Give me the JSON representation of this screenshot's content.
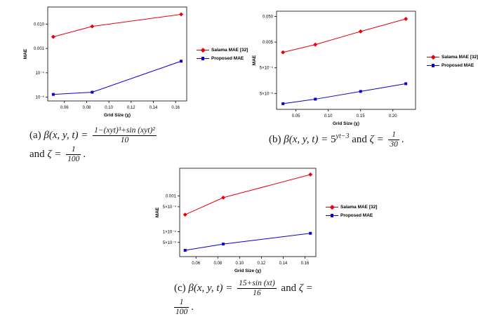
{
  "legend": {
    "salama": "Salama MAE [32]",
    "proposed": "Proposed MAE"
  },
  "colors": {
    "salama": "#e8000b",
    "proposed": "#0b00cd"
  },
  "chart_data": [
    {
      "id": "a",
      "type": "line",
      "title": "",
      "xlabel": "Grid Size (χ)",
      "ylabel": "MAE",
      "x": [
        0.05,
        0.085,
        0.165
      ],
      "series": [
        {
          "name": "Salama MAE [32]",
          "color": "#e8000b",
          "marker": "diamond",
          "values": [
            0.003,
            0.008,
            0.025
          ]
        },
        {
          "name": "Proposed MAE",
          "color": "#0b00cd",
          "marker": "square",
          "values": [
            1.3e-05,
            1.6e-05,
            0.0003
          ]
        }
      ],
      "xlim": [
        0.045,
        0.17
      ],
      "ylim": [
        7e-06,
        0.05
      ],
      "yscale": "log",
      "grid": false,
      "legend_position": "right",
      "xticks": [
        {
          "v": 0.06,
          "label": "0.06"
        },
        {
          "v": 0.08,
          "label": "0.08"
        },
        {
          "v": 0.1,
          "label": "0.10"
        },
        {
          "v": 0.12,
          "label": "0.12"
        },
        {
          "v": 0.14,
          "label": "0.14"
        },
        {
          "v": 0.16,
          "label": "0.16"
        }
      ],
      "yticks": [
        {
          "v": 0.01,
          "label": "0.010"
        },
        {
          "v": 0.001,
          "label": "0.001"
        },
        {
          "v": 0.0001,
          "label": "10⁻⁴"
        },
        {
          "v": 1e-05,
          "label": "10⁻⁵"
        }
      ]
    },
    {
      "id": "b",
      "type": "line",
      "title": "",
      "xlabel": "Grid Size (χ)",
      "ylabel": "MAE",
      "x": [
        0.03,
        0.08,
        0.15,
        0.22
      ],
      "series": [
        {
          "name": "Salama MAE [32]",
          "color": "#e8000b",
          "marker": "diamond",
          "values": [
            0.002,
            0.004,
            0.013,
            0.04
          ]
        },
        {
          "name": "Proposed MAE",
          "color": "#0b00cd",
          "marker": "square",
          "values": [
            2e-05,
            3e-05,
            6e-05,
            0.00012
          ]
        }
      ],
      "xlim": [
        0.02,
        0.235
      ],
      "ylim": [
        1.2e-05,
        0.08
      ],
      "yscale": "log",
      "grid": false,
      "legend_position": "right",
      "xticks": [
        {
          "v": 0.05,
          "label": "0.05"
        },
        {
          "v": 0.1,
          "label": "0.10"
        },
        {
          "v": 0.15,
          "label": "0.15"
        },
        {
          "v": 0.2,
          "label": "0.20"
        }
      ],
      "yticks": [
        {
          "v": 0.05,
          "label": "0.050"
        },
        {
          "v": 0.005,
          "label": "0.005"
        },
        {
          "v": 0.0005,
          "label": "5×10⁻⁴"
        },
        {
          "v": 5e-05,
          "label": "5×10⁻⁵"
        }
      ]
    },
    {
      "id": "c",
      "type": "line",
      "title": "",
      "xlabel": "Grid Size (χ)",
      "ylabel": "MAE",
      "x": [
        0.05,
        0.085,
        0.165
      ],
      "series": [
        {
          "name": "Salama MAE [32]",
          "color": "#e8000b",
          "marker": "diamond",
          "values": [
            0.0003,
            0.0009,
            0.004
          ]
        },
        {
          "name": "Proposed MAE",
          "color": "#0b00cd",
          "marker": "square",
          "values": [
            3e-05,
            4.5e-05,
            9e-05
          ]
        }
      ],
      "xlim": [
        0.045,
        0.17
      ],
      "ylim": [
        2e-05,
        0.006
      ],
      "yscale": "log",
      "grid": false,
      "legend_position": "right",
      "xticks": [
        {
          "v": 0.06,
          "label": "0.06"
        },
        {
          "v": 0.08,
          "label": "0.08"
        },
        {
          "v": 0.1,
          "label": "0.10"
        },
        {
          "v": 0.12,
          "label": "0.12"
        },
        {
          "v": 0.14,
          "label": "0.14"
        },
        {
          "v": 0.16,
          "label": "0.16"
        }
      ],
      "yticks": [
        {
          "v": 0.001,
          "label": "0.001"
        },
        {
          "v": 0.0005,
          "label": "5×10⁻⁴"
        },
        {
          "v": 0.0001,
          "label": "1×10⁻⁴"
        },
        {
          "v": 5e-05,
          "label": "5×10⁻⁵"
        }
      ]
    }
  ],
  "captions": {
    "a": {
      "label": "(a)",
      "beta": "β(x, y, t) =",
      "frac_num": "1−(xyt)³+sin (xyt)²",
      "frac_den": "10",
      "and_word": "and",
      "zeta": "ζ =",
      "zeta_num": "1",
      "zeta_den": "100",
      "period": "."
    },
    "b": {
      "label": "(b)",
      "beta": "β(x, y, t) =",
      "base": "5",
      "exponent": "yt−3",
      "and_word": "and",
      "zeta": "ζ =",
      "zeta_num": "1",
      "zeta_den": "30",
      "period": "."
    },
    "c": {
      "label": "(c)",
      "beta": "β(x, y, t) =",
      "frac_num": "15+sin (xt)",
      "frac_den": "16",
      "and_word": "and",
      "zeta": "ζ =",
      "zeta_num": "1",
      "zeta_den": "100",
      "period": "."
    }
  }
}
